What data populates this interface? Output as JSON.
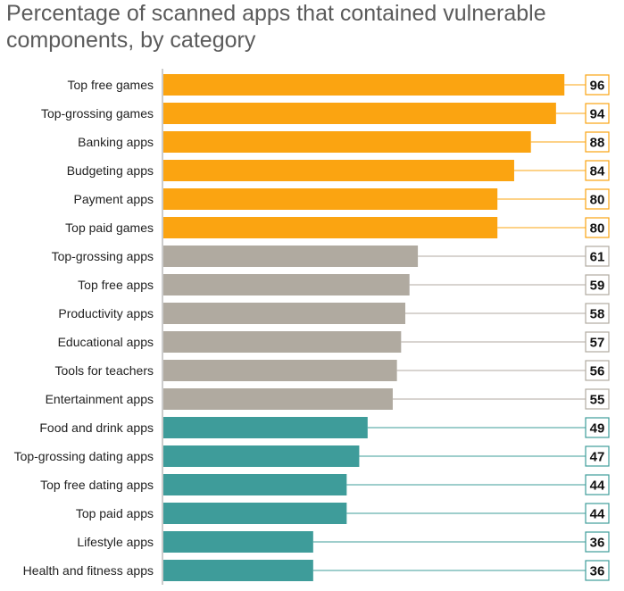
{
  "chart_data": {
    "type": "bar",
    "orientation": "horizontal",
    "title": "Percentage of scanned apps that contained vulnerable components, by category",
    "xlabel": "",
    "ylabel": "",
    "xlim": [
      0,
      100
    ],
    "grid": false,
    "legend": "none",
    "data_labels": true,
    "colors": {
      "games_finance": "#fba411",
      "general": "#b0aaa0",
      "lifestyle": "#3e9c9a"
    },
    "categories": [
      "Top free games",
      "Top-grossing games",
      "Banking apps",
      "Budgeting apps",
      "Payment apps",
      "Top paid games",
      "Top-grossing apps",
      "Top free apps",
      "Productivity apps",
      "Educational apps",
      "Tools for teachers",
      "Entertainment apps",
      "Food and drink apps",
      "Top-grossing dating apps",
      "Top free dating apps",
      "Top paid apps",
      "Lifestyle apps",
      "Health and fitness apps"
    ],
    "values": [
      96,
      94,
      88,
      84,
      80,
      80,
      61,
      59,
      58,
      57,
      56,
      55,
      49,
      47,
      44,
      44,
      36,
      36
    ],
    "value_labels": [
      "96",
      "94",
      "88",
      "84",
      "80",
      "80",
      "61",
      "59",
      "58",
      "57",
      "56",
      "55",
      "49",
      "47",
      "44",
      "44",
      "36",
      "36"
    ],
    "bar_groups": [
      "games_finance",
      "games_finance",
      "games_finance",
      "games_finance",
      "games_finance",
      "games_finance",
      "general",
      "general",
      "general",
      "general",
      "general",
      "general",
      "lifestyle",
      "lifestyle",
      "lifestyle",
      "lifestyle",
      "lifestyle",
      "lifestyle"
    ]
  }
}
